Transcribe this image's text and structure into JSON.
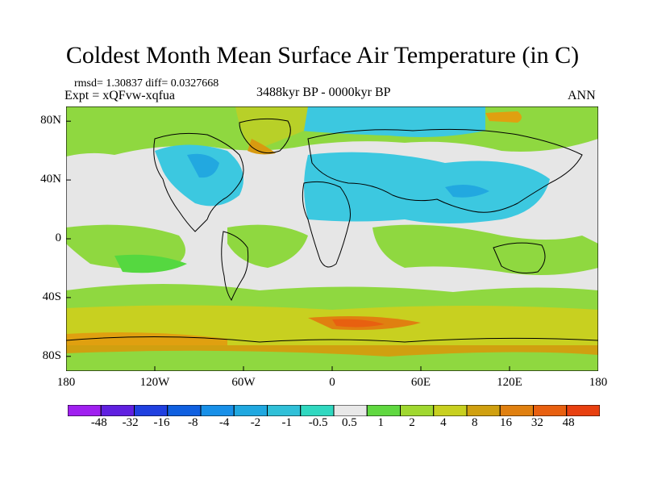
{
  "title": "Coldest Month Mean Surface Air Temperature (in C)",
  "stats": "rmsd= 1.30837 diff= 0.0327668",
  "experiment": "Expt = xQFvw-xqfua",
  "period": "3488kyr BP - 0000kyr BP",
  "season": "ANN",
  "map": {
    "projection": "cylindrical equidistant",
    "lon_range": [
      -180,
      180
    ],
    "lat_range": [
      -90,
      90
    ],
    "y_ticks": [
      {
        "lat": 80,
        "label": "80N"
      },
      {
        "lat": 40,
        "label": "40N"
      },
      {
        "lat": 0,
        "label": "0"
      },
      {
        "lat": -40,
        "label": "40S"
      },
      {
        "lat": -80,
        "label": "80S"
      }
    ],
    "x_ticks": [
      {
        "lon": -180,
        "label": "180"
      },
      {
        "lon": -120,
        "label": "120W"
      },
      {
        "lon": -60,
        "label": "60W"
      },
      {
        "lon": 0,
        "label": "0"
      },
      {
        "lon": 60,
        "label": "60E"
      },
      {
        "lon": 120,
        "label": "120E"
      },
      {
        "lon": 180,
        "label": "180"
      }
    ]
  },
  "colorbar": {
    "labels": [
      "-48",
      "-32",
      "-16",
      "-8",
      "-4",
      "-2",
      "-1",
      "-0.5",
      "0.5",
      "1",
      "2",
      "4",
      "8",
      "16",
      "32",
      "48"
    ],
    "colors": [
      "#a020f0",
      "#6020e0",
      "#2040e0",
      "#1060e0",
      "#1890e8",
      "#20a8e0",
      "#30c0d8",
      "#30d8c0",
      "#e8e8e8",
      "#60d840",
      "#a0d830",
      "#c8d020",
      "#d0a010",
      "#e08010",
      "#e86010",
      "#e84010"
    ]
  }
}
